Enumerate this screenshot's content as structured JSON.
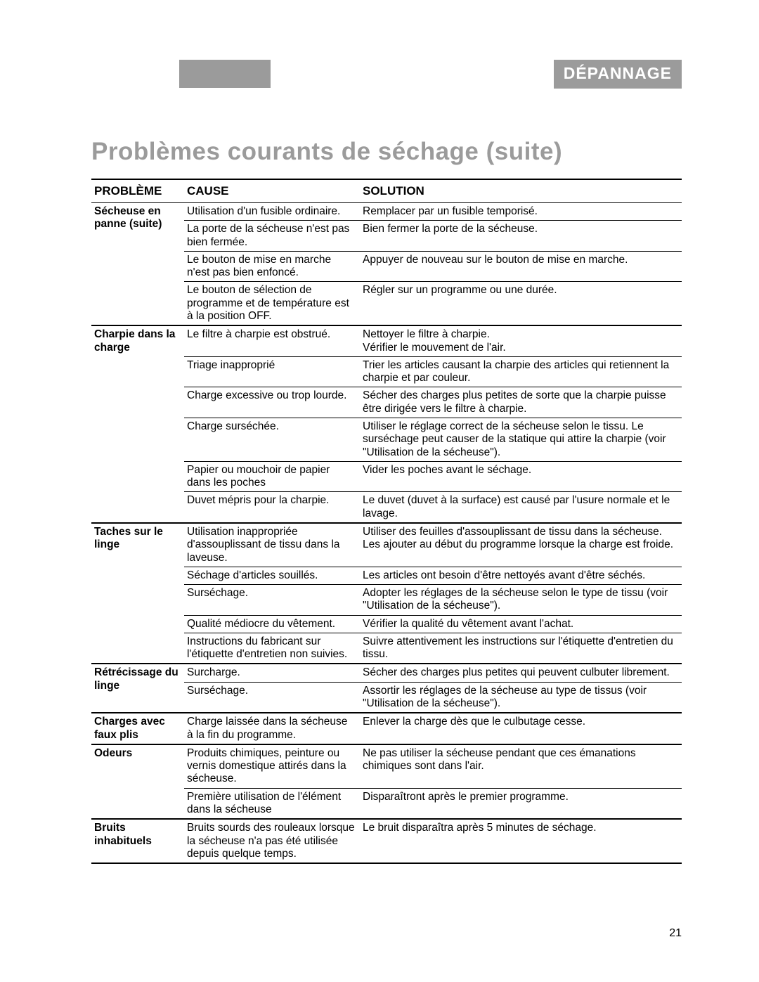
{
  "header": {
    "tab": "DÉPANNAGE"
  },
  "title": "Problèmes courants de séchage (suite)",
  "columns": {
    "problem": "PROBLÈME",
    "cause": "CAUSE",
    "solution": "SOLUTION"
  },
  "page_number": "21",
  "sections": [
    {
      "problem": "Sécheuse en panne (suite)",
      "top_border": "none",
      "rows": [
        {
          "cause": "Utilisation d'un fusible ordinaire.",
          "solution": "Remplacer par un fusible temporisé."
        },
        {
          "cause": "La porte de la sécheuse n'est pas bien fermée.",
          "solution": "Bien fermer la porte de la sécheuse."
        },
        {
          "cause": "Le bouton de mise en marche n'est pas bien enfoncé.",
          "solution": "Appuyer de nouveau sur le bouton de mise en marche."
        },
        {
          "cause": "Le bouton de sélection de programme et de température est à la position OFF.",
          "solution": "Régler sur un programme ou une durée."
        }
      ]
    },
    {
      "problem": "Charpie dans la charge",
      "top_border": "thick",
      "rows": [
        {
          "cause": "Le filtre à charpie est obstrué.",
          "solution": "Nettoyer le filtre à charpie.\nVérifier le mouvement de l'air."
        },
        {
          "cause": "Triage inapproprié",
          "solution": "Trier les articles causant la charpie des articles qui retiennent la charpie et par couleur."
        },
        {
          "cause": "Charge excessive ou trop lourde.",
          "solution": "Sécher des charges plus petites de sorte que la charpie puisse être dirigée vers le filtre à charpie."
        },
        {
          "cause": "Charge surséchée.",
          "solution": "Utiliser le réglage correct de la sécheuse selon le tissu. Le surséchage peut causer de la statique qui attire la charpie (voir \"Utilisation de la sécheuse\")."
        },
        {
          "cause": "Papier ou mouchoir de papier dans les poches",
          "solution": "Vider les poches avant le séchage."
        },
        {
          "cause": "Duvet mépris pour la charpie.",
          "solution": "Le duvet (duvet à la surface) est causé par l'usure normale et le lavage."
        }
      ]
    },
    {
      "problem": "Taches sur le linge",
      "top_border": "thick",
      "rows": [
        {
          "cause": "Utilisation inappropriée d'assouplissant de tissu dans la laveuse.",
          "solution": "Utiliser des feuilles d'assouplissant de tissu dans la sécheuse. Les ajouter au début du programme lorsque la charge est froide."
        },
        {
          "cause": "Séchage d'articles souillés.",
          "solution": "Les articles ont besoin d'être nettoyés avant d'être séchés."
        },
        {
          "cause": "Surséchage.",
          "solution": "Adopter les réglages de la sécheuse selon le type de tissu (voir \"Utilisation de la sécheuse\")."
        },
        {
          "cause": "Qualité médiocre du vêtement.",
          "solution": "Vérifier la qualité du vêtement avant l'achat."
        },
        {
          "cause": "Instructions du fabricant sur l'étiquette d'entretien non suivies.",
          "solution": "Suivre attentivement les instructions sur l'étiquette d'entretien du tissu."
        }
      ]
    },
    {
      "problem": "Rétrécissage du linge",
      "top_border": "thick",
      "rows": [
        {
          "cause": "Surcharge.",
          "solution": "Sécher des charges plus petites qui peuvent culbuter librement."
        },
        {
          "cause": "Surséchage.",
          "solution": "Assortir les réglages de la sécheuse au type de tissus (voir \"Utilisation de la sécheuse\")."
        }
      ]
    },
    {
      "problem": "Charges avec faux plis",
      "top_border": "thick",
      "rows": [
        {
          "cause": "Charge laissée dans la sécheuse à la fin du programme.",
          "solution": "Enlever la charge dès que le culbutage cesse."
        }
      ]
    },
    {
      "problem": "Odeurs",
      "top_border": "thick",
      "rows": [
        {
          "cause": "Produits chimiques, peinture ou vernis domestique attirés dans la sécheuse.",
          "solution": "Ne pas utiliser la sécheuse pendant que ces émanations chimiques sont dans l'air."
        },
        {
          "cause": "Première utilisation de l'élément dans la sécheuse",
          "solution": "Disparaîtront après le premier programme."
        }
      ]
    },
    {
      "problem": "Bruits inhabituels",
      "top_border": "thick",
      "rows": [
        {
          "cause": "Bruits sourds des rouleaux lorsque la sécheuse n'a pas été utilisée depuis quelque temps.",
          "solution": "Le bruit disparaîtra après 5 minutes de séchage."
        }
      ]
    }
  ]
}
